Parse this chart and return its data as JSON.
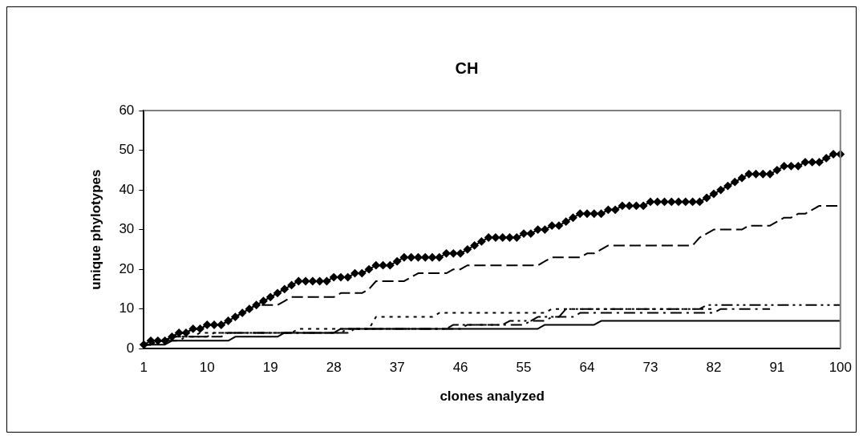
{
  "chart_data": {
    "type": "line",
    "title": "CH",
    "xlabel": "clones analyzed",
    "ylabel": "unique phylotypes",
    "categories": [
      "1",
      null,
      null,
      null,
      null,
      null,
      null,
      null,
      null,
      "10",
      null,
      null,
      null,
      null,
      null,
      null,
      null,
      null,
      "19",
      null,
      null,
      null,
      null,
      null,
      null,
      null,
      null,
      "28",
      null,
      null,
      null,
      null,
      null,
      null,
      null,
      null,
      "37",
      null,
      null,
      null,
      null,
      null,
      null,
      null,
      null,
      "46",
      null,
      null,
      null,
      null,
      null,
      null,
      null,
      null,
      "55",
      null,
      null,
      null,
      null,
      null,
      null,
      null,
      null,
      "64",
      null,
      null,
      null,
      null,
      null,
      null,
      null,
      null,
      "73",
      null,
      null,
      null,
      null,
      null,
      null,
      null,
      null,
      "82",
      null,
      null,
      null,
      null,
      null,
      null,
      null,
      null,
      "91",
      null,
      null,
      null,
      null,
      null,
      null,
      null,
      null,
      "100"
    ],
    "ylim": [
      0,
      60
    ],
    "yticks": [
      0,
      10,
      20,
      30,
      40,
      50,
      60
    ],
    "grid": false,
    "legend": false,
    "series": [
      {
        "color": "#000000",
        "marker": "diamond",
        "line_style": "solid",
        "values": [
          1,
          2,
          2,
          2,
          3,
          4,
          4,
          5,
          5,
          6,
          6,
          6,
          7,
          8,
          9,
          10,
          11,
          12,
          13,
          14,
          15,
          16,
          17,
          17,
          17,
          17,
          17,
          18,
          18,
          18,
          19,
          19,
          20,
          21,
          21,
          21,
          22,
          23,
          23,
          23,
          23,
          23,
          23,
          24,
          24,
          24,
          25,
          26,
          27,
          28,
          28,
          28,
          28,
          28,
          29,
          29,
          30,
          30,
          31,
          31,
          32,
          33,
          34,
          34,
          34,
          34,
          35,
          35,
          36,
          36,
          36,
          36,
          37,
          37,
          37,
          37,
          37,
          37,
          37,
          37,
          38,
          39,
          40,
          41,
          42,
          43,
          44,
          44,
          44,
          44,
          45,
          46,
          46,
          46,
          47,
          47,
          47,
          48,
          49,
          49
        ]
      },
      {
        "color": "#000000",
        "marker": "none",
        "line_style": "dashed",
        "values": [
          1,
          1,
          2,
          2,
          3,
          4,
          4,
          5,
          5,
          6,
          6,
          6,
          7,
          8,
          9,
          10,
          11,
          11,
          11,
          11,
          12,
          13,
          13,
          13,
          13,
          13,
          13,
          13,
          14,
          14,
          14,
          14,
          15,
          17,
          17,
          17,
          17,
          17,
          18,
          19,
          19,
          19,
          19,
          19,
          20,
          20,
          21,
          21,
          21,
          21,
          21,
          21,
          21,
          21,
          21,
          21,
          21,
          22,
          23,
          23,
          23,
          23,
          23,
          24,
          24,
          25,
          26,
          26,
          26,
          26,
          26,
          26,
          26,
          26,
          26,
          26,
          26,
          26,
          26,
          28,
          29,
          30,
          30,
          30,
          30,
          30,
          31,
          31,
          31,
          31,
          32,
          33,
          33,
          34,
          34,
          35,
          36,
          36,
          36,
          36
        ]
      },
      {
        "color": "#000000",
        "marker": "none",
        "line_style": "dashed",
        "values": [
          1,
          1,
          2,
          2,
          3,
          3,
          3,
          3,
          3,
          3,
          4,
          4,
          4,
          4,
          4,
          4,
          4,
          4,
          4,
          4,
          4,
          4,
          4,
          4,
          4,
          4,
          4,
          4,
          4,
          4,
          5,
          5,
          5,
          5,
          5,
          5,
          5,
          5,
          5,
          5,
          5,
          5,
          5,
          5,
          6,
          6,
          6,
          6,
          6,
          6,
          6,
          6,
          7,
          7,
          7,
          7,
          8,
          8,
          8,
          8,
          10,
          10,
          10,
          10,
          10,
          10,
          10,
          10,
          10,
          10,
          10,
          10,
          10,
          10,
          10,
          10,
          10,
          10,
          10,
          10,
          11,
          11,
          11,
          11,
          11,
          11,
          11,
          11,
          11,
          11,
          11,
          11,
          11,
          11,
          11,
          11,
          11,
          11,
          11,
          11
        ]
      },
      {
        "color": "#000000",
        "marker": "none",
        "line_style": "dashed",
        "values": [
          1,
          1,
          2,
          2,
          2,
          2,
          3,
          3,
          3,
          3,
          3,
          3,
          4,
          4,
          4,
          4,
          4,
          4,
          4,
          4,
          4,
          4,
          4,
          4,
          4,
          4,
          4,
          4,
          4,
          5,
          5,
          5,
          5,
          5,
          5,
          5,
          5,
          5,
          5,
          5,
          5,
          5,
          5,
          5,
          5,
          5,
          6,
          6,
          6,
          6,
          6,
          6,
          6,
          6,
          6,
          7,
          7,
          7,
          8,
          8,
          8,
          8,
          9,
          9,
          9,
          9,
          9,
          9,
          9,
          9,
          9,
          9,
          9,
          9,
          9,
          9,
          9,
          9,
          9,
          9,
          9,
          9,
          10,
          10,
          10,
          10,
          10,
          10,
          10,
          10,
          null,
          null,
          null,
          null,
          null,
          null,
          null,
          null,
          null,
          null
        ]
      },
      {
        "color": "#000000",
        "marker": "none",
        "line_style": "dotted",
        "values": [
          1,
          1,
          2,
          2,
          3,
          3,
          3,
          3,
          4,
          4,
          4,
          4,
          4,
          4,
          4,
          4,
          4,
          4,
          4,
          4,
          4,
          4,
          5,
          5,
          5,
          5,
          5,
          5,
          5,
          5,
          5,
          5,
          5,
          8,
          8,
          8,
          8,
          8,
          8,
          8,
          8,
          8,
          9,
          9,
          9,
          9,
          9,
          9,
          9,
          9,
          9,
          9,
          9,
          9,
          9,
          9,
          9,
          9,
          10,
          10,
          10,
          10,
          10,
          10,
          10,
          10,
          10,
          10,
          10,
          10,
          10,
          10,
          10,
          10,
          10,
          10,
          10,
          10,
          10,
          10,
          10,
          10,
          null,
          null,
          null,
          null,
          null,
          null,
          null,
          null,
          null,
          null,
          null,
          null,
          null,
          null,
          null,
          null,
          null,
          null
        ]
      },
      {
        "color": "#000000",
        "marker": "none",
        "line_style": "solid",
        "values": [
          1,
          1,
          1,
          1,
          2,
          2,
          2,
          2,
          2,
          2,
          2,
          2,
          2,
          3,
          3,
          3,
          3,
          3,
          3,
          3,
          4,
          4,
          4,
          4,
          4,
          4,
          4,
          4,
          5,
          5,
          5,
          5,
          5,
          5,
          5,
          5,
          5,
          5,
          5,
          5,
          5,
          5,
          5,
          5,
          5,
          5,
          5,
          5,
          5,
          5,
          5,
          5,
          5,
          5,
          5,
          5,
          5,
          6,
          6,
          6,
          6,
          6,
          6,
          6,
          6,
          7,
          7,
          7,
          7,
          7,
          7,
          7,
          7,
          7,
          7,
          7,
          7,
          7,
          7,
          7,
          7,
          7,
          7,
          7,
          7,
          7,
          7,
          7,
          7,
          7,
          7,
          7,
          7,
          7,
          7,
          7,
          7,
          7,
          7,
          7
        ]
      }
    ]
  }
}
